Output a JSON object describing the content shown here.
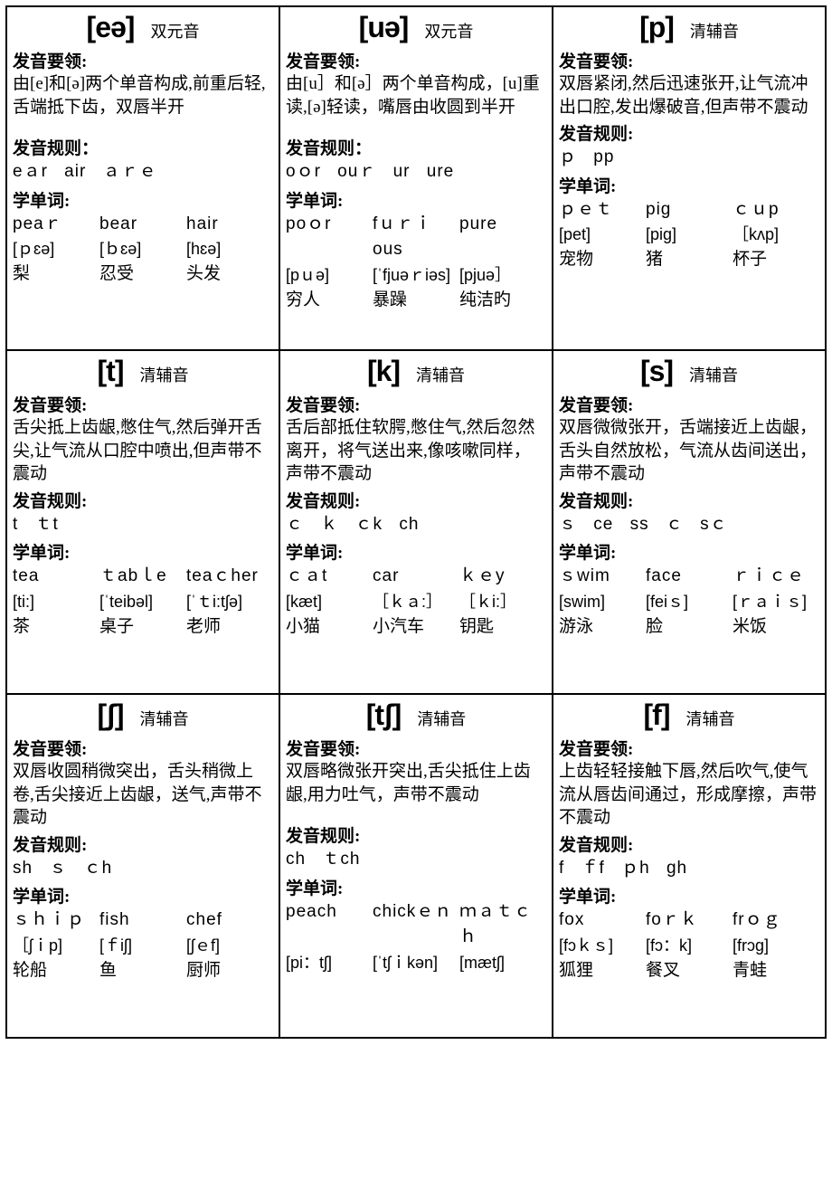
{
  "cells": [
    {
      "symbol": "[eə]",
      "type": "双元音",
      "tips_label": "发音要领:",
      "tips": "由[e]和[ə]两个单音构成,前重后轻,舌端抵下齿，双唇半开",
      "rules_label": "发音规则：",
      "rules": "eａr air ａｒｅ",
      "words_label": "学单词:",
      "words": [
        "peaｒ",
        "bear",
        "hair"
      ],
      "phonetics": [
        "[ｐɛə]",
        "[ｂɛə]",
        "[hɛə]"
      ],
      "meanings": [
        "梨",
        "忍受",
        "头发"
      ]
    },
    {
      "symbol": "[uə]",
      "type": "双元音",
      "tips_label": "发音要领:",
      "tips": "由[u］和[ə］两个单音构成，[u]重读,[ə]轻读，嘴唇由收圆到半开",
      "rules_label": "发音规则：",
      "rules": "oｏr ouｒ ur ure",
      "words_label": "学单词:",
      "words": [
        "poｏr",
        "fｕｒｉous",
        "pure"
      ],
      "phonetics": [
        "[pｕə]",
        "[ˈfjuəｒiəs]",
        "[pjuə］"
      ],
      "meanings": [
        "穷人",
        "暴躁",
        "纯洁旳"
      ]
    },
    {
      "symbol": "[p]",
      "type": "清辅音",
      "tips_label": "发音要领:",
      "tips": "双唇紧闭,然后迅速张开,让气流冲出口腔,发出爆破音,但声带不震动",
      "rules_label": "发音规则:",
      "rules": "ｐ pp",
      "words_label": "学单词:",
      "words": [
        "ｐｅｔ",
        "pig",
        "ｃｕp"
      ],
      "phonetics": [
        "[pet]",
        "[pig]",
        "［kʌp]"
      ],
      "meanings": [
        "宠物",
        "猪",
        "杯子"
      ]
    },
    {
      "symbol": "[t]",
      "type": "清辅音",
      "tips_label": "发音要领:",
      "tips": "舌尖抵上齿龈,憋住气,然后弹开舌尖,让气流从口腔中喷出,但声带不震动",
      "rules_label": "发音规则:",
      "rules": "t ｔt",
      "words_label": "学单词:",
      "words": [
        "tea",
        "ｔabｌe",
        "teaｃher"
      ],
      "phonetics": [
        "[ti:]",
        "[ˈteibəl]",
        "[ˈｔi:tʃə]"
      ],
      "meanings": [
        "茶",
        "桌子",
        "老师"
      ]
    },
    {
      "symbol": "[k]",
      "type": "清辅音",
      "tips_label": "发音要领:",
      "tips": "舌后部抵住软腭,憋住气,然后忽然离开，将气送出来,像咳嗽同样，声带不震动",
      "rules_label": "发音规则:",
      "rules": "ｃ ｋ ｃk ch",
      "words_label": "学单词:",
      "words": [
        "ｃａt",
        "car",
        "ｋｅy"
      ],
      "phonetics": [
        "[kæt]",
        "［ｋａ:］",
        "［ｋi:］"
      ],
      "meanings": [
        "小猫",
        "小汽车",
        "钥匙"
      ]
    },
    {
      "symbol": "[s]",
      "type": "清辅音",
      "tips_label": "发音要领:",
      "tips": "双唇微微张开，舌端接近上齿龈，舌头自然放松，气流从齿间送出，声带不震动",
      "rules_label": "发音规则:",
      "rules": "ｓ ce ss ｃ sｃ",
      "words_label": "学单词:",
      "words": [
        "ｓwim",
        "face",
        "ｒｉｃｅ"
      ],
      "phonetics": [
        "[swim]",
        "[feiｓ]",
        "[ｒａｉｓ]"
      ],
      "meanings": [
        "游泳",
        "脸",
        "米饭"
      ]
    },
    {
      "symbol": "[ʃ]",
      "type": "清辅音",
      "tips_label": "发音要领:",
      "tips": "双唇收圆稍微突出，舌头稍微上卷,舌尖接近上齿龈，送气,声带不震动",
      "rules_label": "发音规则:",
      "rules": "sh ｓ ｃh",
      "words_label": "学单词:",
      "words": [
        "ｓｈｉｐ",
        "fish",
        "chef"
      ],
      "phonetics": [
        "［ʃｉp]",
        "[ｆiʃ]",
        "[ʃｅf]"
      ],
      "meanings": [
        "轮船",
        "鱼",
        "厨师"
      ]
    },
    {
      "symbol": "[tʃ]",
      "type": "清辅音",
      "tips_label": "发音要领:",
      "tips": "双唇略微张开突出,舌尖抵住上齿龈,用力吐气，声带不震动",
      "rules_label": "发音规则:",
      "rules": "ch ｔch",
      "words_label": "学单词:",
      "words": [
        "peach",
        "chickｅｎ",
        "ｍａｔｃｈ"
      ],
      "phonetics": [
        "[pi：tʃ]",
        "[ˈtʃｉkən]",
        "[mætʃ]"
      ],
      "meanings": [
        "",
        "",
        ""
      ]
    },
    {
      "symbol": "[f]",
      "type": "清辅音",
      "tips_label": "发音要领:",
      "tips": "上齿轻轻接触下唇,然后吹气,使气流从唇齿间通过，形成摩擦，声带不震动",
      "rules_label": "发音规则:",
      "rules": "f ｆf ｐh gh",
      "words_label": "学单词:",
      "words": [
        "fox",
        "foｒｋ",
        "frｏｇ"
      ],
      "phonetics": [
        "[fɔｋｓ]",
        "[fɔ：k]",
        "[frɔg]"
      ],
      "meanings": [
        "狐狸",
        "餐叉",
        "青蛙"
      ]
    }
  ]
}
